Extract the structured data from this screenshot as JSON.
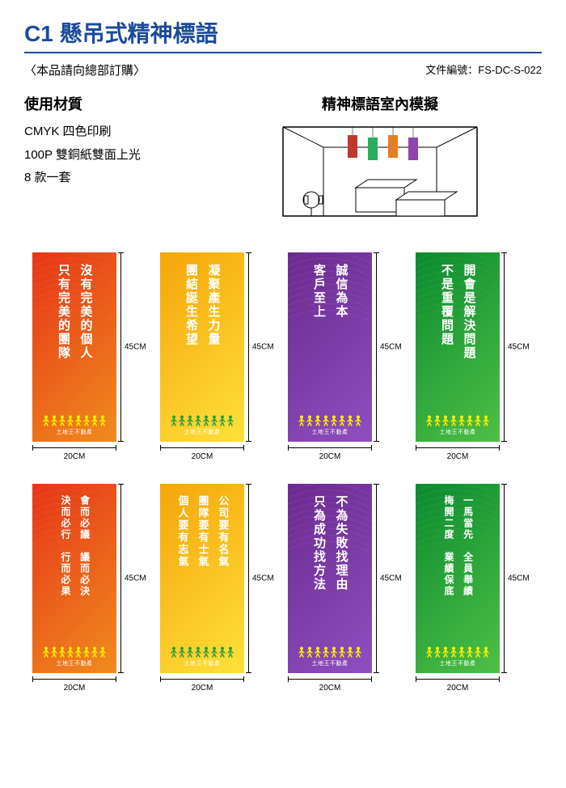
{
  "title": "C1 懸吊式精神標語",
  "order_note": "〈本品請向總部訂購〉",
  "doc_no_label": "文件編號：",
  "doc_no": "FS-DC-S-022",
  "material_title": "使用材質",
  "material_lines": [
    "CMYK 四色印刷",
    "100P 雙銅紙雙面上光",
    "8 款一套"
  ],
  "mockup_title": "精神標語室內模擬",
  "dim_w": "20CM",
  "dim_h": "45CM",
  "logo_text": "土地王不動產",
  "banner_colors": {
    "red_grad": [
      "#e53518",
      "#f08c1e"
    ],
    "yellow_grad": [
      "#f5a50a",
      "#ffe13a"
    ],
    "purple_grad": [
      "#6a2a8f",
      "#8f4fc0"
    ],
    "green_grad": [
      "#0a8a2f",
      "#4fc046"
    ]
  },
  "people_colors": {
    "red": "#fff200",
    "yellow": "#2a9b3a",
    "purple": "#fff200",
    "green": "#fff200"
  },
  "mini_banner_colors": [
    "#c0392b",
    "#27ae60",
    "#e67e22",
    "#8e44ad"
  ],
  "banners": [
    {
      "scheme": "red",
      "cols": [
        "沒有完美的個人",
        "只有完美的團隊"
      ]
    },
    {
      "scheme": "yellow",
      "cols": [
        "凝聚產生力量",
        "團結誕生希望"
      ]
    },
    {
      "scheme": "purple",
      "cols": [
        "誠信為本",
        "客戶至上"
      ]
    },
    {
      "scheme": "green",
      "cols": [
        "開會是解決問題",
        "不是重覆問題"
      ]
    },
    {
      "scheme": "red",
      "cols": [
        "會而必議　議而必決",
        "決而必行　行而必果"
      ]
    },
    {
      "scheme": "yellow",
      "cols": [
        "公司要有名氣",
        "團隊要有士氣",
        "個人要有志氣"
      ]
    },
    {
      "scheme": "purple",
      "cols": [
        "不為失敗找理由",
        "只為成功找方法"
      ]
    },
    {
      "scheme": "green",
      "cols": [
        "一馬當先　全員舉績",
        "梅開二度　業績保底"
      ]
    }
  ]
}
